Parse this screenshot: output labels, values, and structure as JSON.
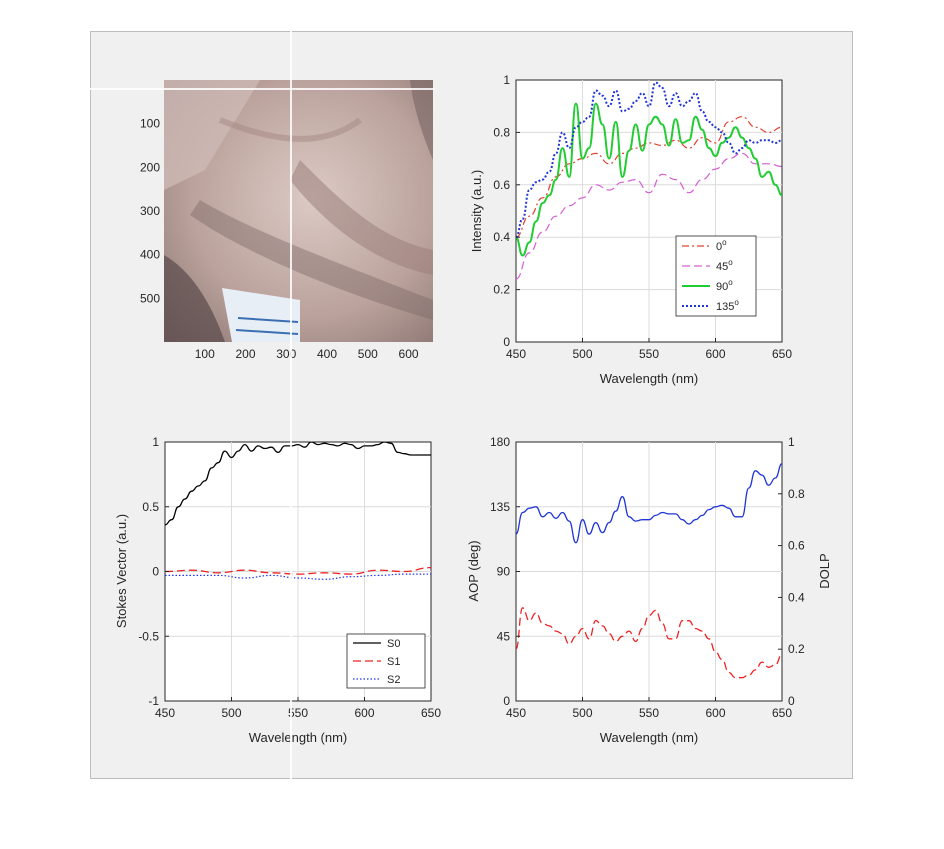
{
  "chart_data": [
    {
      "type": "image",
      "id": "hand-image",
      "xticks": [
        100,
        200,
        300,
        400,
        500,
        600
      ],
      "yticks": [
        100,
        200,
        300,
        400,
        500
      ],
      "xlim": [
        0,
        660
      ],
      "ylim": [
        600,
        0
      ],
      "crosshair": {
        "x": 300,
        "y": 0
      },
      "colors": {
        "skin_light": "#d8c7c3",
        "skin_mid": "#b59d98",
        "skin_dark": "#6b5a59",
        "paper": "#e8eef5"
      }
    },
    {
      "type": "line",
      "id": "intensity",
      "xlabel": "Wavelength (nm)",
      "ylabel": "Intensity (a.u.)",
      "xlim": [
        450,
        650
      ],
      "ylim": [
        0,
        1
      ],
      "xticks": [
        450,
        500,
        550,
        600,
        650
      ],
      "yticks": [
        0,
        0.2,
        0.4,
        0.6,
        0.8,
        1
      ],
      "ytick_labels": [
        "0",
        "0.2",
        "0.4",
        "0.6",
        "0.8",
        "1"
      ],
      "grid": true,
      "legend": "lower-right",
      "series": [
        {
          "name": "0",
          "sup": "o",
          "color": "#e0412f",
          "dash": "7,3,2,3",
          "width": 1.2,
          "x": [
            450,
            460,
            470,
            480,
            490,
            500,
            510,
            520,
            530,
            540,
            550,
            560,
            570,
            580,
            590,
            600,
            610,
            620,
            630,
            640,
            650
          ],
          "y": [
            0.4,
            0.48,
            0.55,
            0.63,
            0.68,
            0.7,
            0.72,
            0.68,
            0.72,
            0.74,
            0.76,
            0.75,
            0.77,
            0.74,
            0.78,
            0.76,
            0.84,
            0.86,
            0.82,
            0.8,
            0.82
          ]
        },
        {
          "name": "45",
          "sup": "o",
          "color": "#d35fd3",
          "dash": "8,4",
          "width": 1.2,
          "x": [
            450,
            460,
            470,
            480,
            490,
            500,
            510,
            520,
            530,
            540,
            550,
            560,
            570,
            580,
            590,
            600,
            610,
            620,
            630,
            640,
            650
          ],
          "y": [
            0.24,
            0.34,
            0.42,
            0.48,
            0.52,
            0.55,
            0.6,
            0.58,
            0.61,
            0.62,
            0.57,
            0.64,
            0.62,
            0.57,
            0.62,
            0.66,
            0.7,
            0.72,
            0.68,
            0.68,
            0.67
          ]
        },
        {
          "name": "90",
          "sup": "o",
          "color": "#22cc33",
          "dash": "",
          "width": 2,
          "x": [
            450,
            455,
            460,
            465,
            470,
            475,
            480,
            485,
            490,
            495,
            500,
            505,
            510,
            515,
            520,
            525,
            530,
            535,
            540,
            545,
            550,
            555,
            560,
            565,
            570,
            575,
            580,
            585,
            590,
            595,
            600,
            605,
            610,
            615,
            620,
            625,
            630,
            635,
            640,
            645,
            650
          ],
          "y": [
            0.4,
            0.33,
            0.38,
            0.46,
            0.53,
            0.56,
            0.62,
            0.74,
            0.63,
            0.91,
            0.7,
            0.74,
            0.91,
            0.83,
            0.7,
            0.84,
            0.63,
            0.73,
            0.83,
            0.73,
            0.83,
            0.86,
            0.83,
            0.75,
            0.85,
            0.76,
            0.77,
            0.86,
            0.81,
            0.74,
            0.71,
            0.76,
            0.78,
            0.82,
            0.78,
            0.74,
            0.7,
            0.63,
            0.65,
            0.6,
            0.56
          ]
        },
        {
          "name": "135",
          "sup": "o",
          "color": "#1f35d6",
          "dash": "2,2",
          "width": 2,
          "x": [
            450,
            455,
            460,
            465,
            470,
            475,
            480,
            485,
            490,
            495,
            500,
            505,
            510,
            515,
            520,
            525,
            530,
            535,
            540,
            545,
            550,
            555,
            560,
            565,
            570,
            575,
            580,
            585,
            590,
            595,
            600,
            605,
            610,
            615,
            620,
            625,
            630,
            635,
            640,
            645,
            650
          ],
          "y": [
            0.4,
            0.47,
            0.58,
            0.61,
            0.62,
            0.65,
            0.72,
            0.8,
            0.74,
            0.82,
            0.84,
            0.86,
            0.96,
            0.94,
            0.9,
            0.96,
            0.88,
            0.89,
            0.92,
            0.95,
            0.9,
            0.99,
            0.97,
            0.9,
            0.95,
            0.9,
            0.92,
            0.95,
            0.88,
            0.84,
            0.82,
            0.8,
            0.76,
            0.72,
            0.74,
            0.77,
            0.76,
            0.77,
            0.77,
            0.76,
            0.77
          ]
        }
      ]
    },
    {
      "type": "line",
      "id": "stokes",
      "xlabel": "Wavelength (nm)",
      "ylabel": "Stokes Vector (a.u.)",
      "xlim": [
        450,
        650
      ],
      "ylim": [
        -1,
        1
      ],
      "xticks": [
        450,
        500,
        550,
        600,
        650
      ],
      "yticks": [
        -1,
        -0.5,
        0,
        0.5,
        1
      ],
      "ytick_labels": [
        "-1",
        "-0.5",
        "0",
        "0.5",
        "1"
      ],
      "grid": true,
      "legend": "lower-right",
      "series": [
        {
          "name": "S0",
          "color": "#000000",
          "dash": "",
          "width": 1.3,
          "x": [
            450,
            455,
            460,
            465,
            470,
            475,
            480,
            485,
            490,
            495,
            500,
            505,
            510,
            515,
            520,
            525,
            530,
            535,
            540,
            545,
            550,
            555,
            560,
            565,
            570,
            575,
            580,
            585,
            590,
            595,
            600,
            605,
            610,
            615,
            620,
            625,
            630,
            635,
            640,
            645,
            650
          ],
          "y": [
            0.36,
            0.4,
            0.5,
            0.56,
            0.62,
            0.66,
            0.7,
            0.8,
            0.84,
            0.93,
            0.88,
            0.93,
            0.98,
            0.93,
            0.97,
            0.95,
            0.96,
            0.92,
            0.97,
            0.97,
            0.98,
            0.96,
            1.0,
            0.98,
            0.99,
            0.98,
            0.97,
            0.99,
            0.98,
            0.95,
            0.97,
            0.97,
            0.98,
            1.0,
            0.99,
            0.92,
            0.91,
            0.9,
            0.9,
            0.9,
            0.9
          ]
        },
        {
          "name": "S1",
          "color": "#ee2222",
          "dash": "8,4",
          "width": 1.3,
          "x": [
            450,
            470,
            490,
            510,
            530,
            550,
            570,
            590,
            610,
            630,
            650
          ],
          "y": [
            0.0,
            0.01,
            -0.01,
            0.01,
            -0.01,
            -0.02,
            -0.01,
            -0.02,
            0.01,
            0.0,
            0.03
          ]
        },
        {
          "name": "S2",
          "color": "#2233ee",
          "dash": "1.5,2",
          "width": 1.2,
          "x": [
            450,
            470,
            490,
            510,
            530,
            550,
            570,
            590,
            610,
            630,
            650
          ],
          "y": [
            -0.03,
            -0.03,
            -0.03,
            -0.05,
            -0.03,
            -0.05,
            -0.06,
            -0.04,
            -0.03,
            -0.02,
            -0.02
          ]
        }
      ]
    },
    {
      "type": "line",
      "id": "aop-dolp",
      "xlabel": "Wavelength (nm)",
      "ylabel": "AOP (deg)",
      "y2label": "DOLP",
      "xlim": [
        450,
        650
      ],
      "ylim": [
        0,
        180
      ],
      "y2lim": [
        0,
        1
      ],
      "xticks": [
        450,
        500,
        550,
        600,
        650
      ],
      "yticks": [
        0,
        45,
        90,
        135,
        180
      ],
      "ytick_labels": [
        "0",
        "45",
        "90",
        "135",
        "180"
      ],
      "y2ticks": [
        0,
        0.2,
        0.4,
        0.6,
        0.8,
        1
      ],
      "y2tick_labels": [
        "0",
        "0.2",
        "0.4",
        "0.6",
        "0.8",
        "1"
      ],
      "grid": true,
      "colors": {
        "left_axis": "#1f35d6",
        "right_axis": "#ee2222"
      },
      "series": [
        {
          "name": "AOP",
          "axis": "left",
          "color": "#1f35d6",
          "dash": "",
          "width": 1.3,
          "x": [
            450,
            455,
            460,
            465,
            470,
            475,
            480,
            485,
            490,
            495,
            500,
            505,
            510,
            515,
            520,
            525,
            530,
            535,
            540,
            545,
            550,
            555,
            560,
            565,
            570,
            575,
            580,
            585,
            590,
            595,
            600,
            605,
            610,
            615,
            620,
            625,
            630,
            635,
            640,
            645,
            650
          ],
          "y": [
            116,
            131,
            134,
            135,
            128,
            131,
            127,
            131,
            125,
            110,
            126,
            116,
            124,
            117,
            124,
            132,
            142,
            128,
            125,
            126,
            126,
            129,
            131,
            130,
            130,
            126,
            123,
            126,
            129,
            133,
            135,
            136,
            134,
            128,
            128,
            148,
            160,
            157,
            150,
            155,
            165
          ]
        },
        {
          "name": "DOLP",
          "axis": "right",
          "color": "#ee2222",
          "dash": "8,4",
          "width": 1.3,
          "x": [
            450,
            455,
            460,
            465,
            470,
            475,
            480,
            485,
            490,
            495,
            500,
            505,
            510,
            515,
            520,
            525,
            530,
            535,
            540,
            545,
            550,
            555,
            560,
            565,
            570,
            575,
            580,
            585,
            590,
            595,
            600,
            605,
            610,
            615,
            620,
            625,
            630,
            635,
            640,
            645,
            650
          ],
          "y": [
            0.2,
            0.36,
            0.31,
            0.34,
            0.3,
            0.29,
            0.27,
            0.26,
            0.22,
            0.25,
            0.28,
            0.24,
            0.31,
            0.29,
            0.26,
            0.23,
            0.25,
            0.27,
            0.23,
            0.28,
            0.33,
            0.35,
            0.3,
            0.24,
            0.24,
            0.31,
            0.31,
            0.28,
            0.27,
            0.24,
            0.19,
            0.16,
            0.11,
            0.09,
            0.09,
            0.1,
            0.12,
            0.15,
            0.13,
            0.14,
            0.18
          ]
        }
      ]
    }
  ]
}
